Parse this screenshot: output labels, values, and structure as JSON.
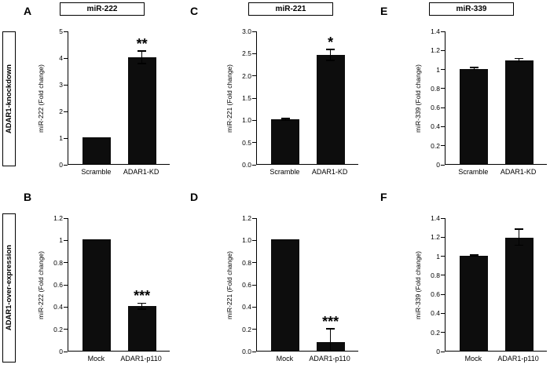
{
  "figure": {
    "background": "#ffffff",
    "column_titles": [
      "miR-222",
      "miR-221",
      "miR-339"
    ],
    "row_labels": [
      "ADAR1-knockdown",
      "ADAR1-over-expression"
    ],
    "panels": [
      "A",
      "B",
      "C",
      "D",
      "E",
      "F"
    ]
  },
  "colors": {
    "bar": "#0d0d0d",
    "axis": "#000000",
    "box_border": "#000000"
  },
  "chart_data": [
    {
      "panel": "A",
      "type": "bar",
      "categories": [
        "Scramble",
        "ADAR1-KD"
      ],
      "values": [
        1.0,
        4.0
      ],
      "errors": [
        0,
        0.25
      ],
      "significance": [
        "",
        "**"
      ],
      "title": "miR-222",
      "xlabel": "",
      "ylabel": "miR-222 (Fold change)",
      "ylim": [
        0,
        5
      ],
      "yticks": [
        "0",
        "1",
        "2",
        "3",
        "4",
        "5"
      ],
      "grid": false,
      "legend": "none"
    },
    {
      "panel": "B",
      "type": "bar",
      "categories": [
        "Mock",
        "ADAR1-p110"
      ],
      "values": [
        1.0,
        0.4
      ],
      "errors": [
        0,
        0.03
      ],
      "significance": [
        "",
        "***"
      ],
      "title": "miR-222",
      "xlabel": "",
      "ylabel": "miR-222 (Fold change)",
      "ylim": [
        0,
        1.2
      ],
      "yticks": [
        "0",
        "0.2",
        "0.4",
        "0.6",
        "0.8",
        "1",
        "1.2"
      ],
      "grid": false,
      "legend": "none"
    },
    {
      "panel": "C",
      "type": "bar",
      "categories": [
        "Scramble",
        "ADAR1-KD"
      ],
      "values": [
        1.0,
        2.45
      ],
      "errors": [
        0.03,
        0.13
      ],
      "significance": [
        "",
        "*"
      ],
      "title": "miR-221",
      "xlabel": "",
      "ylabel": "miR-221 (Fold change)",
      "ylim": [
        0,
        3
      ],
      "yticks": [
        "0.0",
        "0.5",
        "1.0",
        "1.5",
        "2.0",
        "2.5",
        "3.0"
      ],
      "grid": false,
      "legend": "none"
    },
    {
      "panel": "D",
      "type": "bar",
      "categories": [
        "Mock",
        "ADAR1-p110"
      ],
      "values": [
        1.0,
        0.08
      ],
      "errors": [
        0,
        0.12
      ],
      "significance": [
        "",
        "***"
      ],
      "title": "miR-221",
      "xlabel": "",
      "ylabel": "miR-221 (Fold change)",
      "ylim": [
        0,
        1.2
      ],
      "yticks": [
        "0.0",
        "0.2",
        "0.4",
        "0.6",
        "0.8",
        "1.0",
        "1.2"
      ],
      "grid": false,
      "legend": "none"
    },
    {
      "panel": "E",
      "type": "bar",
      "categories": [
        "Scramble",
        "ADAR1-KD"
      ],
      "values": [
        1.0,
        1.09
      ],
      "errors": [
        0.015,
        0.02
      ],
      "significance": [
        "",
        ""
      ],
      "title": "miR-339",
      "xlabel": "",
      "ylabel": "miR-339 (Fold change)",
      "ylim": [
        0,
        1.4
      ],
      "yticks": [
        "0",
        "0.2",
        "0.4",
        "0.6",
        "0.8",
        "1",
        "1.2",
        "1.4"
      ],
      "grid": false,
      "legend": "none"
    },
    {
      "panel": "F",
      "type": "bar",
      "categories": [
        "Mock",
        "ADAR1-p110"
      ],
      "values": [
        1.0,
        1.19
      ],
      "errors": [
        0.01,
        0.09
      ],
      "significance": [
        "",
        ""
      ],
      "title": "miR-339",
      "xlabel": "",
      "ylabel": "miR-339 (Fold change)",
      "ylim": [
        0,
        1.4
      ],
      "yticks": [
        "0",
        "0.2",
        "0.4",
        "0.6",
        "0.8",
        "1",
        "1.2",
        "1.4"
      ],
      "grid": false,
      "legend": "none"
    }
  ]
}
